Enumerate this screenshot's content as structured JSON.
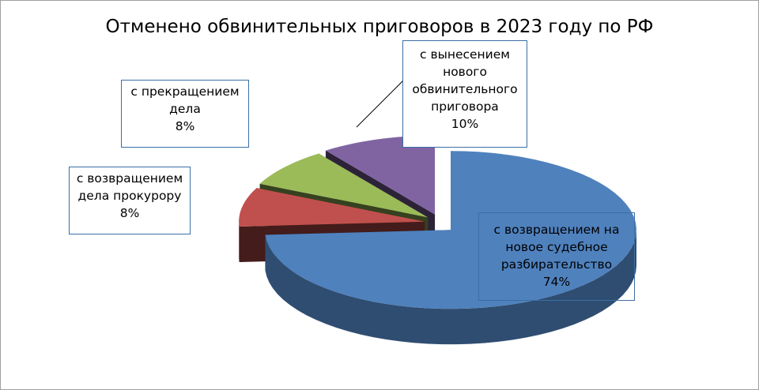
{
  "chart_data": {
    "type": "pie3d",
    "title": "Отменено обвинительных приговоров в 2023 году по РФ",
    "categories": [
      "с возвращением на новое судебное разбирательство",
      "с возвращением дела прокурору",
      "с прекращением дела",
      "с вынесением нового обвинительного приговора"
    ],
    "values": [
      74,
      8,
      8,
      10
    ],
    "value_labels": [
      "74%",
      "8%",
      "8%",
      "10%"
    ],
    "colors": [
      "#4f81bd",
      "#c0504d",
      "#9bbb59",
      "#8064a2"
    ]
  }
}
